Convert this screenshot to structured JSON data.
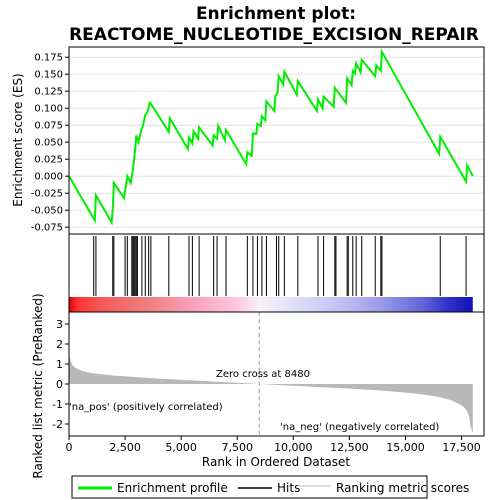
{
  "chart_data": {
    "type": "line",
    "title": "Enrichment plot:",
    "subtitle": "REACTOME_NUCLEOTIDE_EXCISION_REPAIR",
    "top_panel": {
      "ylabel": "Enrichment score (ES)",
      "ylim": [
        -0.085,
        0.19
      ],
      "yticks": [
        -0.075,
        -0.05,
        -0.025,
        0.0,
        0.025,
        0.05,
        0.075,
        0.1,
        0.125,
        0.15,
        0.175
      ],
      "ytick_labels": [
        "-0.075",
        "-0.050",
        "-0.025",
        "0.000",
        "0.025",
        "0.050",
        "0.075",
        "0.100",
        "0.125",
        "0.150",
        "0.175"
      ],
      "grid": true,
      "line_color": "#00ee00",
      "es_profile": {
        "x": [
          0,
          1150,
          1200,
          1900,
          1950,
          2000,
          2450,
          2600,
          2750,
          2850,
          2900,
          2950,
          3000,
          3100,
          3200,
          3300,
          3400,
          3500,
          3600,
          3700,
          4450,
          4500,
          5300,
          5350,
          5500,
          5550,
          5750,
          5800,
          6400,
          6450,
          6600,
          6650,
          6950,
          7000,
          7900,
          7950,
          8150,
          8200,
          8350,
          8400,
          8550,
          8600,
          8750,
          8800,
          9150,
          9200,
          9300,
          9350,
          9550,
          9600,
          10150,
          10200,
          11050,
          11100,
          11300,
          11350,
          11800,
          11850,
          12350,
          12400,
          12600,
          12650,
          12750,
          12800,
          13000,
          13050,
          13650,
          13700,
          13900,
          13950,
          16500,
          16550,
          17700,
          17750,
          18000
        ],
        "y": [
          0.0,
          -0.065,
          -0.028,
          -0.068,
          -0.05,
          -0.01,
          -0.032,
          0.0,
          -0.01,
          0.01,
          0.025,
          0.04,
          0.06,
          0.05,
          0.065,
          0.075,
          0.09,
          0.095,
          0.108,
          0.104,
          0.065,
          0.085,
          0.04,
          0.057,
          0.048,
          0.066,
          0.055,
          0.072,
          0.045,
          0.06,
          0.055,
          0.074,
          0.053,
          0.068,
          0.018,
          0.035,
          0.03,
          0.063,
          0.062,
          0.077,
          0.074,
          0.088,
          0.082,
          0.11,
          0.096,
          0.118,
          0.123,
          0.147,
          0.135,
          0.154,
          0.12,
          0.14,
          0.096,
          0.113,
          0.1,
          0.117,
          0.102,
          0.13,
          0.108,
          0.144,
          0.134,
          0.155,
          0.151,
          0.166,
          0.153,
          0.171,
          0.147,
          0.163,
          0.155,
          0.183,
          0.033,
          0.058,
          -0.008,
          0.016,
          0.0
        ]
      }
    },
    "hits": [
      1100,
      1200,
      1950,
      2000,
      2500,
      2600,
      2800,
      2850,
      2900,
      2950,
      3000,
      3050,
      3250,
      3400,
      3550,
      3650,
      4450,
      5350,
      5500,
      5800,
      6450,
      6600,
      7000,
      7950,
      8200,
      8400,
      8600,
      8800,
      9250,
      9350,
      9600,
      10200,
      11100,
      11350,
      11850,
      11900,
      12400,
      12450,
      12650,
      12800,
      13050,
      13650,
      13900,
      13950,
      16550,
      17700
    ],
    "middle_panel": {
      "pos_label": "'na_pos' (positively correlated)",
      "neg_label": "'na_neg' (negatively correlated)"
    },
    "bottom_panel": {
      "ylabel": "Ranked list metric (PreRanked)",
      "ylim": [
        -2.6,
        3.6
      ],
      "yticks": [
        -2,
        -1,
        0,
        1,
        2,
        3
      ],
      "ytick_labels": [
        "-2",
        "-1",
        "0",
        "1",
        "2",
        "3"
      ],
      "zero_cross_label": "Zero cross at 8480",
      "zero_cross": 8480,
      "metric": {
        "x": [
          0,
          20,
          60,
          150,
          300,
          600,
          1000,
          2000,
          4000,
          6000,
          8480,
          10000,
          12000,
          14000,
          15500,
          16500,
          17000,
          17400,
          17600,
          17750,
          17850,
          17900,
          18000
        ],
        "y": [
          1.75,
          1.45,
          1.2,
          0.95,
          0.8,
          0.65,
          0.55,
          0.42,
          0.27,
          0.15,
          0.0,
          -0.09,
          -0.2,
          -0.33,
          -0.48,
          -0.65,
          -0.8,
          -1.0,
          -1.15,
          -1.35,
          -1.7,
          -2.1,
          -2.45
        ]
      }
    },
    "xaxis": {
      "xlabel": "Rank in Ordered Dataset",
      "xlim": [
        0,
        18500
      ],
      "xticks": [
        0,
        2500,
        5000,
        7500,
        10000,
        12500,
        15000,
        17500
      ],
      "xtick_labels": [
        "0",
        "2,500",
        "5,000",
        "7,500",
        "10,000",
        "12,500",
        "15,000",
        "17,500"
      ]
    },
    "legend": {
      "placement": "bottom",
      "items": [
        {
          "label": "Enrichment profile",
          "color": "#00ee00"
        },
        {
          "label": "Hits",
          "color": "#000000"
        },
        {
          "label": "Ranking metric scores",
          "color": "#c0c0c0"
        }
      ]
    }
  }
}
